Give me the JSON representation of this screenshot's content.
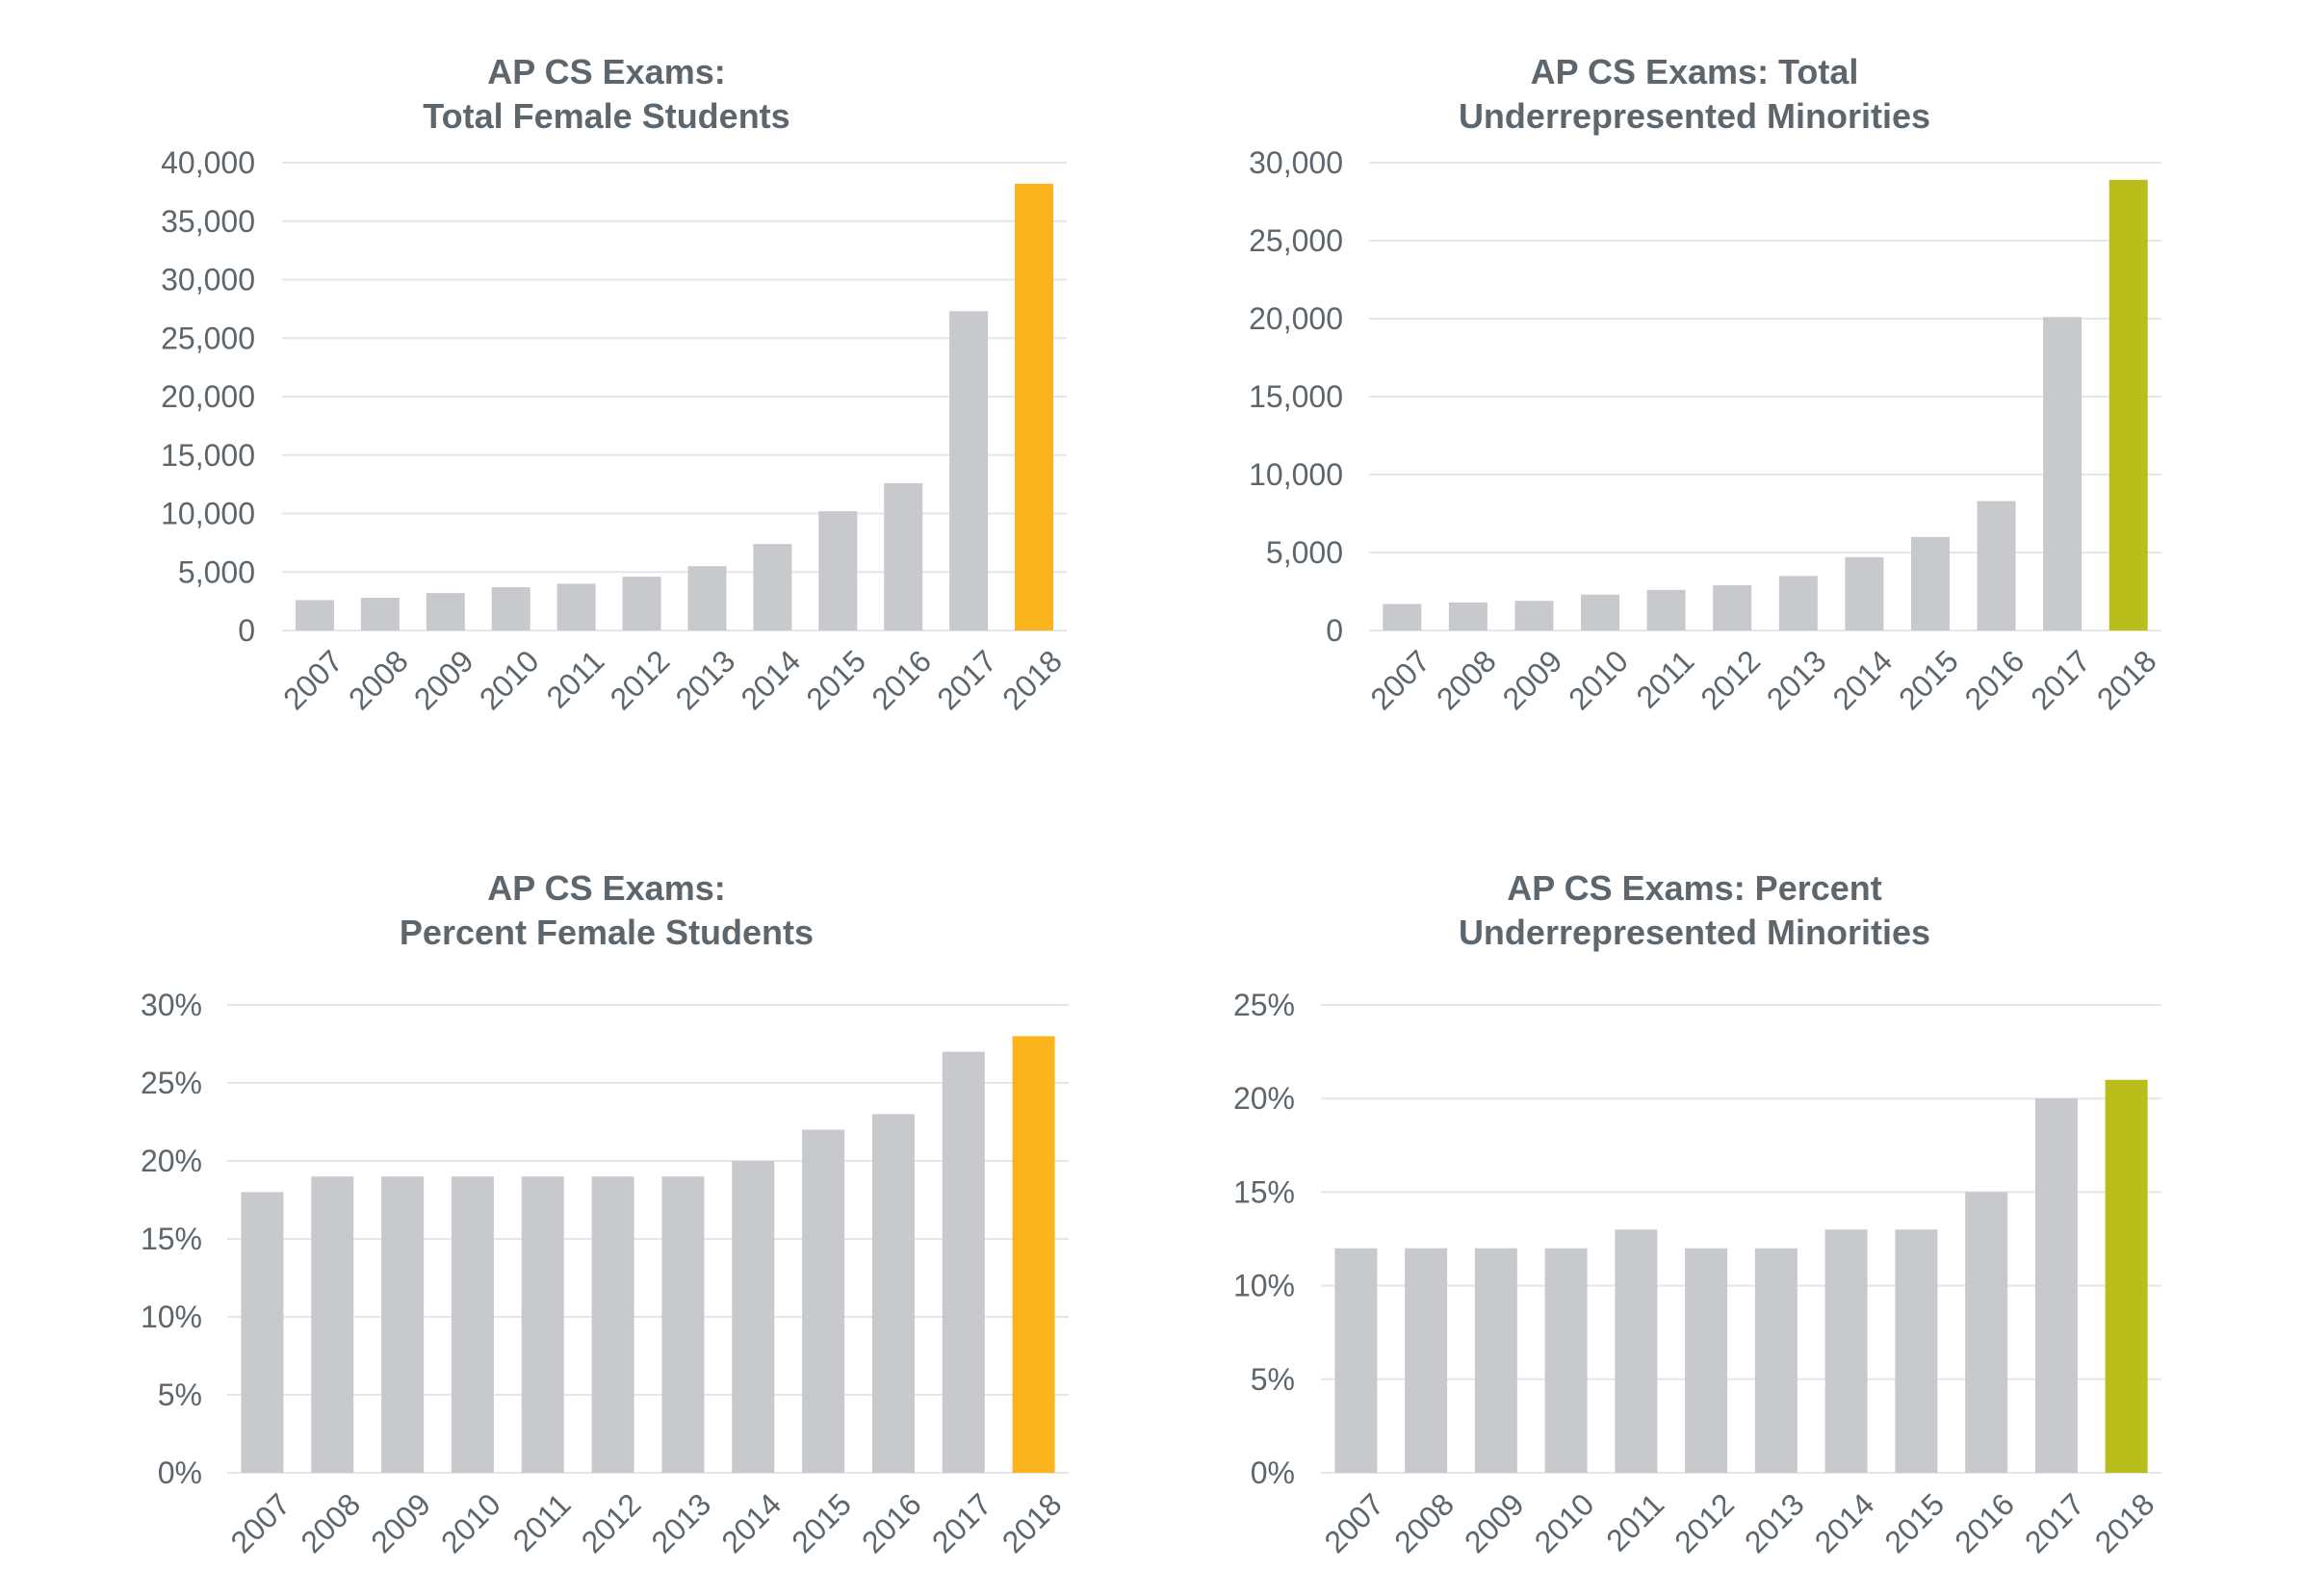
{
  "chart_data": [
    {
      "type": "bar",
      "title_lines": [
        "AP CS Exams:",
        "Total Female Students"
      ],
      "categories": [
        "2007",
        "2008",
        "2009",
        "2010",
        "2011",
        "2012",
        "2013",
        "2014",
        "2015",
        "2016",
        "2017",
        "2018"
      ],
      "values": [
        2600,
        2800,
        3200,
        3700,
        4000,
        4600,
        5500,
        7400,
        10200,
        12600,
        27300,
        38200
      ],
      "ylim": [
        0,
        40000
      ],
      "y_ticks": [
        "0",
        "5,000",
        "10,000",
        "15,000",
        "20,000",
        "25,000",
        "30,000",
        "35,000",
        "40,000"
      ],
      "bar_color": "#c7c9cc",
      "highlight_color": "#fbb41d",
      "highlight_index": 11,
      "grid": true
    },
    {
      "type": "bar",
      "title_lines": [
        "AP CS Exams: Total",
        "Underrepresented Minorities"
      ],
      "categories": [
        "2007",
        "2008",
        "2009",
        "2010",
        "2011",
        "2012",
        "2013",
        "2014",
        "2015",
        "2016",
        "2017",
        "2018"
      ],
      "values": [
        1700,
        1800,
        1900,
        2300,
        2600,
        2900,
        3500,
        4700,
        6000,
        8300,
        20100,
        28900
      ],
      "ylim": [
        0,
        30000
      ],
      "y_ticks": [
        "0",
        "5,000",
        "10,000",
        "15,000",
        "20,000",
        "25,000",
        "30,000"
      ],
      "bar_color": "#c7c9cc",
      "highlight_color": "#b9be1b",
      "highlight_index": 11,
      "grid": true
    },
    {
      "type": "bar",
      "title_lines": [
        "AP CS Exams:",
        "Percent Female Students"
      ],
      "categories": [
        "2007",
        "2008",
        "2009",
        "2010",
        "2011",
        "2012",
        "2013",
        "2014",
        "2015",
        "2016",
        "2017",
        "2018"
      ],
      "values": [
        18,
        19,
        19,
        19,
        19,
        19,
        19,
        20,
        22,
        23,
        27,
        28
      ],
      "ylim": [
        0,
        30
      ],
      "y_ticks": [
        "0%",
        "5%",
        "10%",
        "15%",
        "20%",
        "25%",
        "30%"
      ],
      "bar_color": "#c7c9cc",
      "highlight_color": "#fbb41d",
      "highlight_index": 11,
      "grid": true
    },
    {
      "type": "bar",
      "title_lines": [
        "AP CS Exams: Percent",
        "Underrepresented Minorities"
      ],
      "categories": [
        "2007",
        "2008",
        "2009",
        "2010",
        "2011",
        "2012",
        "2013",
        "2014",
        "2015",
        "2016",
        "2017",
        "2018"
      ],
      "values": [
        12,
        12,
        12,
        12,
        13,
        12,
        12,
        13,
        13,
        15,
        20,
        21
      ],
      "ylim": [
        0,
        25
      ],
      "y_ticks": [
        "0%",
        "5%",
        "10%",
        "15%",
        "20%",
        "25%"
      ],
      "bar_color": "#c7c9cc",
      "highlight_color": "#b9be1b",
      "highlight_index": 11,
      "grid": true
    }
  ]
}
